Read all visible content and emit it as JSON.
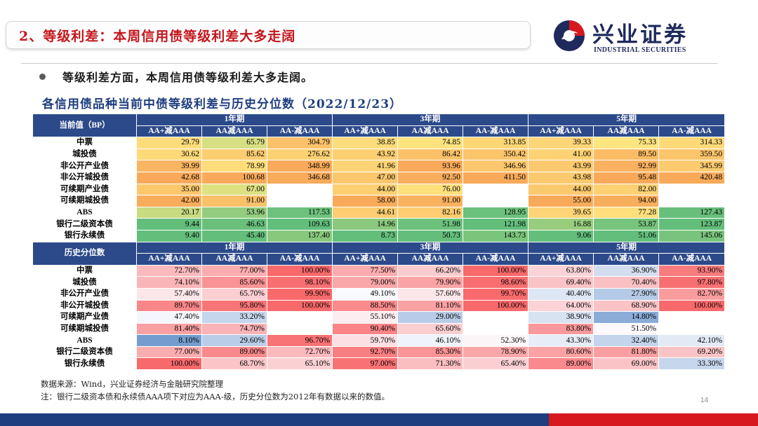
{
  "header": {
    "title": "2、等级利差：本周信用债等级利差大多走阔",
    "logo_cn": "兴业证券",
    "logo_en": "INDUSTRIAL SECURITIES"
  },
  "bullet": "等级利差方面，本周信用债等级利差大多走阔。",
  "table_title": "各信用债品种当前中债等级利差与历史分位数（2022/12/23）",
  "table": {
    "periods": [
      "1年期",
      "3年期",
      "5年期"
    ],
    "cols": [
      "AA+减AAA",
      "AA减AAA",
      "AA-减AAA"
    ],
    "current": {
      "label": "当前值（BP）",
      "rows": [
        {
          "name": "中票",
          "values": [
            "29.79",
            "65.79",
            "304.79",
            "38.85",
            "74.85",
            "313.85",
            "39.33",
            "75.33",
            "314.33"
          ]
        },
        {
          "name": "城投债",
          "values": [
            "30.62",
            "85.62",
            "276.62",
            "43.92",
            "86.42",
            "350.42",
            "41.00",
            "89.50",
            "359.50"
          ]
        },
        {
          "name": "非公开产业债",
          "values": [
            "39.99",
            "78.99",
            "348.99",
            "41.96",
            "93.96",
            "346.96",
            "43.99",
            "92.99",
            "345.99"
          ]
        },
        {
          "name": "非公开城投债",
          "values": [
            "42.68",
            "100.68",
            "346.68",
            "47.00",
            "92.50",
            "411.50",
            "43.98",
            "95.48",
            "420.48"
          ]
        },
        {
          "name": "可续期产业债",
          "values": [
            "35.00",
            "67.00",
            "",
            "44.00",
            "76.00",
            "",
            "44.00",
            "82.00",
            ""
          ]
        },
        {
          "name": "可续期城投债",
          "values": [
            "42.00",
            "91.00",
            "",
            "58.00",
            "91.00",
            "",
            "55.00",
            "94.00",
            ""
          ]
        },
        {
          "name": "ABS",
          "values": [
            "20.17",
            "53.96",
            "117.53",
            "44.61",
            "82.16",
            "128.95",
            "39.65",
            "77.28",
            "127.43"
          ]
        },
        {
          "name": "银行二级资本债",
          "values": [
            "9.44",
            "46.63",
            "109.63",
            "14.96",
            "51.98",
            "121.98",
            "16.88",
            "53.87",
            "123.87"
          ]
        },
        {
          "name": "银行永续债",
          "values": [
            "9.40",
            "45.40",
            "137.40",
            "8.73",
            "50.73",
            "143.73",
            "9.06",
            "51.06",
            "145.06"
          ]
        }
      ]
    },
    "history": {
      "label": "历史分位数",
      "rows": [
        {
          "name": "中票",
          "values": [
            "72.70%",
            "77.00%",
            "100.00%",
            "77.50%",
            "66.20%",
            "100.00%",
            "63.80%",
            "36.90%",
            "93.90%"
          ]
        },
        {
          "name": "城投债",
          "values": [
            "74.10%",
            "85.60%",
            "98.10%",
            "79.00%",
            "79.90%",
            "98.60%",
            "69.40%",
            "70.40%",
            "97.80%"
          ]
        },
        {
          "name": "非公开产业债",
          "values": [
            "57.40%",
            "65.70%",
            "99.90%",
            "49.10%",
            "57.60%",
            "99.70%",
            "40.40%",
            "27.90%",
            "82.70%"
          ]
        },
        {
          "name": "非公开城投债",
          "values": [
            "89.70%",
            "95.80%",
            "100.00%",
            "88.50%",
            "81.10%",
            "100.00%",
            "64.00%",
            "68.90%",
            "100.00%"
          ]
        },
        {
          "name": "可续期产业债",
          "values": [
            "47.40%",
            "33.20%",
            "",
            "55.10%",
            "29.00%",
            "",
            "38.90%",
            "14.80%",
            ""
          ]
        },
        {
          "name": "可续期城投债",
          "values": [
            "81.40%",
            "74.70%",
            "",
            "90.40%",
            "65.60%",
            "",
            "83.80%",
            "51.50%",
            ""
          ]
        },
        {
          "name": "ABS",
          "values": [
            "8.10%",
            "29.60%",
            "96.70%",
            "59.70%",
            "46.10%",
            "52.30%",
            "43.30%",
            "32.40%",
            "42.10%"
          ]
        },
        {
          "name": "银行二级资本债",
          "values": [
            "77.00%",
            "89.00%",
            "72.70%",
            "92.70%",
            "85.30%",
            "78.90%",
            "80.60%",
            "81.80%",
            "69.20%"
          ]
        },
        {
          "name": "银行永续债",
          "values": [
            "100.00%",
            "68.70%",
            "65.10%",
            "97.00%",
            "71.30%",
            "65.40%",
            "89.00%",
            "69.00%",
            "33.30%"
          ]
        }
      ]
    }
  },
  "footer": {
    "source": "数据来源：Wind，兴业证券经济与金融研究院整理",
    "note": "注：银行二级资本债和永续债AAA项下对应为AAA-级，历史分位数为2012年有数据以来的数值。",
    "page": "14"
  },
  "colors": {
    "title_red": "#c4161c",
    "navy": "#1f3e80",
    "header_blue": "#2c4a8a",
    "band_red": "#d7181f"
  }
}
